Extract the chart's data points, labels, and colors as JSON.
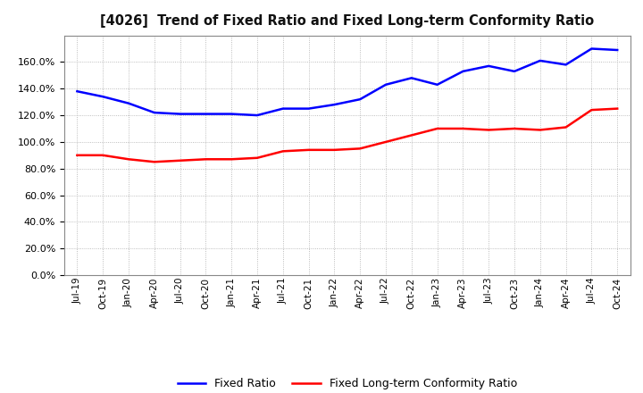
{
  "title": "[4026]  Trend of Fixed Ratio and Fixed Long-term Conformity Ratio",
  "x_labels": [
    "Jul-19",
    "Oct-19",
    "Jan-20",
    "Apr-20",
    "Jul-20",
    "Oct-20",
    "Jan-21",
    "Apr-21",
    "Jul-21",
    "Oct-21",
    "Jan-22",
    "Apr-22",
    "Jul-22",
    "Oct-22",
    "Jan-23",
    "Apr-23",
    "Jul-23",
    "Oct-23",
    "Jan-24",
    "Apr-24",
    "Jul-24",
    "Oct-24"
  ],
  "fixed_ratio": [
    138,
    134,
    129,
    122,
    121,
    121,
    121,
    120,
    125,
    125,
    128,
    132,
    143,
    148,
    143,
    153,
    157,
    153,
    161,
    158,
    170,
    169
  ],
  "fixed_lt_ratio": [
    90,
    90,
    87,
    85,
    86,
    87,
    87,
    88,
    93,
    94,
    94,
    95,
    100,
    105,
    110,
    110,
    109,
    110,
    109,
    111,
    124,
    125
  ],
  "fixed_ratio_color": "#0000FF",
  "fixed_lt_ratio_color": "#FF0000",
  "background_color": "#FFFFFF",
  "plot_bg_color": "#FFFFFF",
  "grid_color": "#AAAAAA",
  "legend_fixed_ratio": "Fixed Ratio",
  "legend_fixed_lt_ratio": "Fixed Long-term Conformity Ratio"
}
